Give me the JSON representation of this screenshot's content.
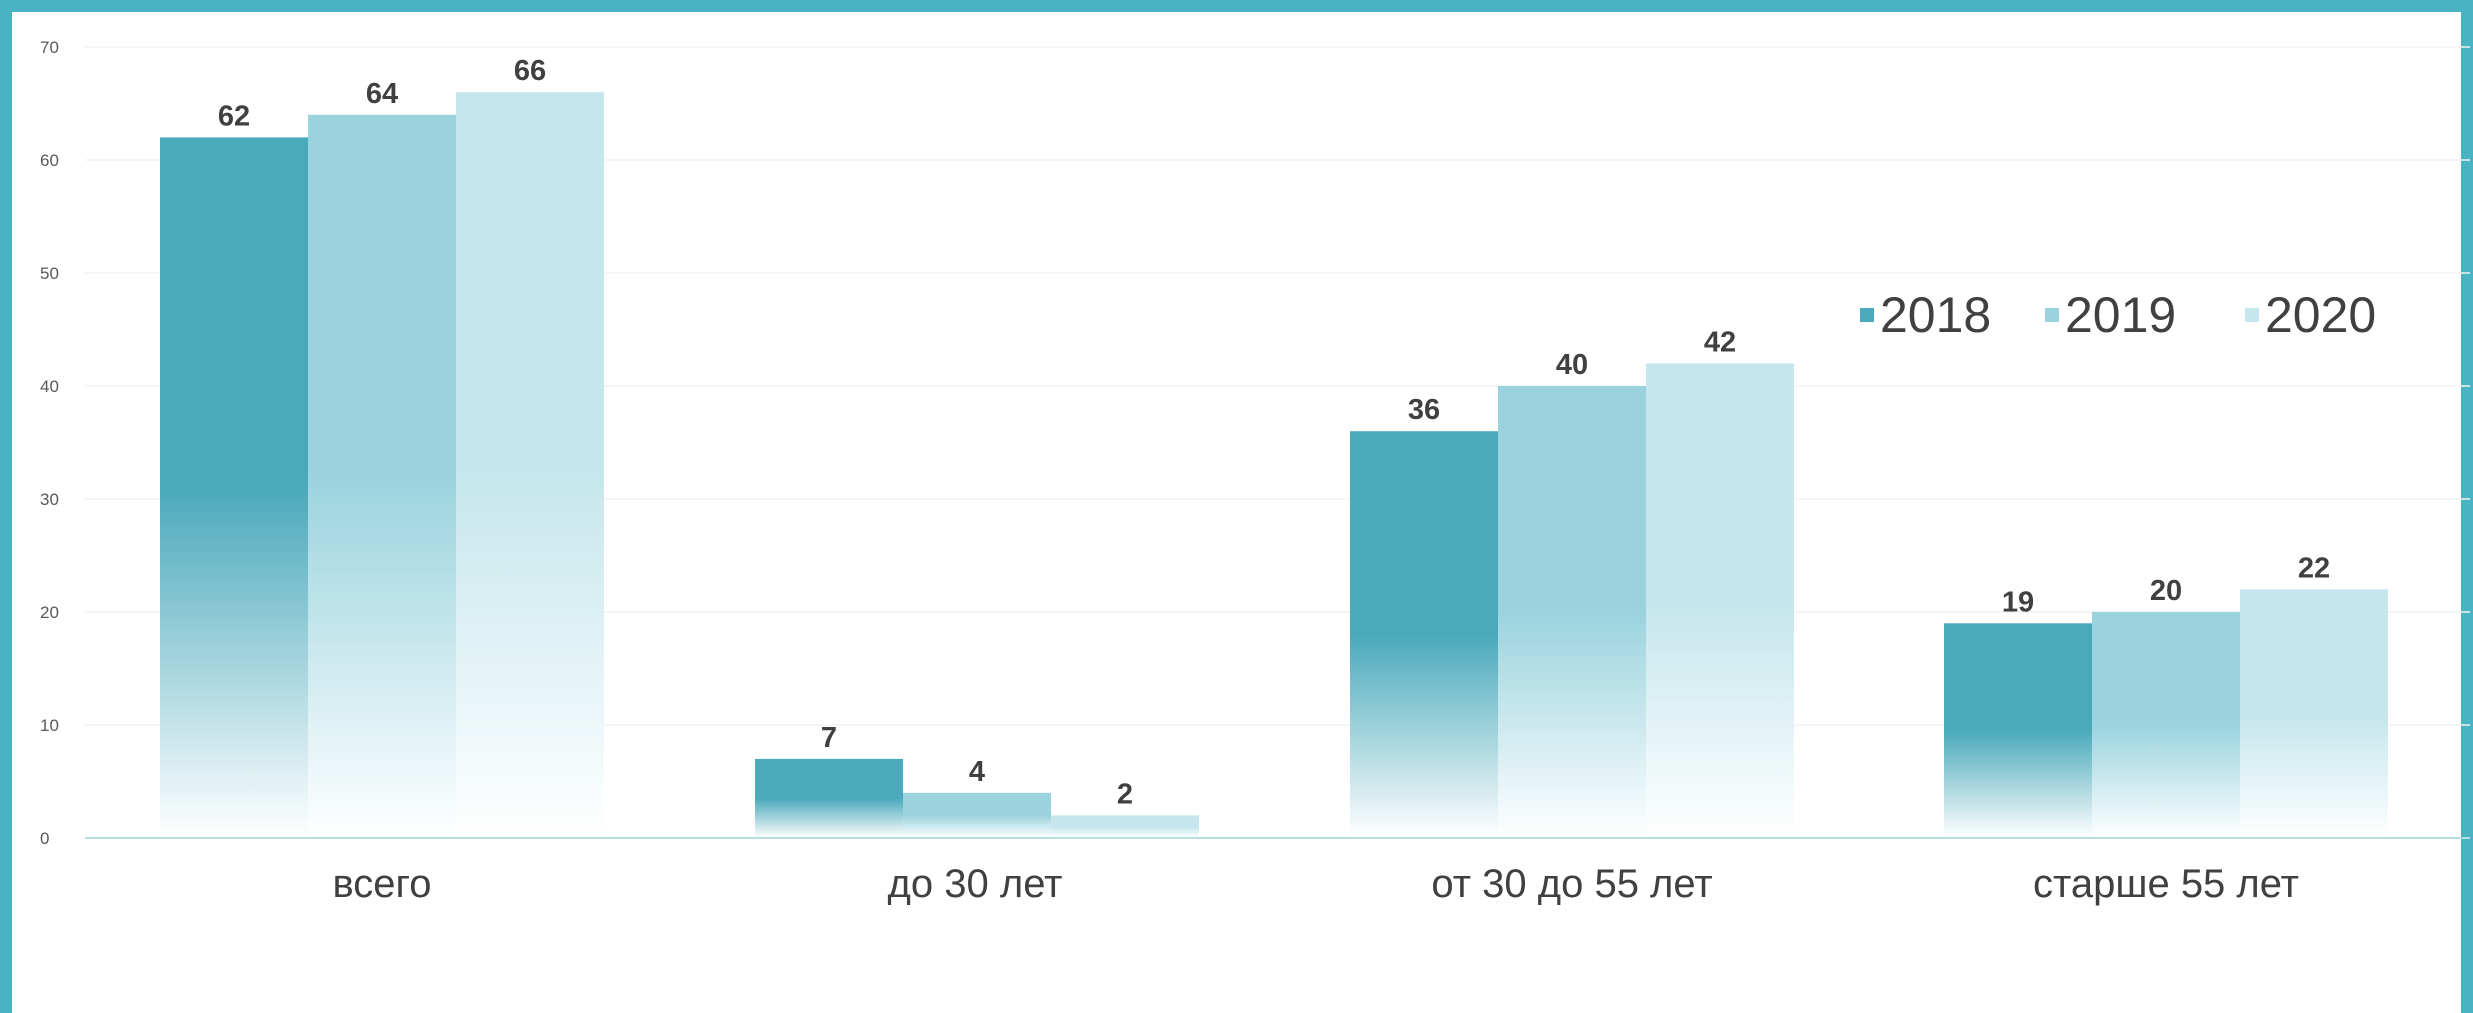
{
  "chart_data": {
    "type": "bar",
    "categories": [
      "всего",
      "до 30 лет",
      "от 30 до 55 лет",
      "старше 55 лет"
    ],
    "series": [
      {
        "name": "2018",
        "values": [
          62,
          7,
          36,
          19
        ],
        "color": "#4aa9bb"
      },
      {
        "name": "2019",
        "values": [
          64,
          4,
          40,
          20
        ],
        "color": "#9ad3de"
      },
      {
        "name": "2020",
        "values": [
          66,
          2,
          42,
          22
        ],
        "color": "#c4e6ec"
      }
    ],
    "ylim": [
      0,
      70
    ],
    "yticks": [
      0,
      10,
      20,
      30,
      40,
      50,
      60,
      70
    ],
    "title": "",
    "xlabel": "",
    "ylabel": "",
    "grid": true,
    "legend_position": "right",
    "frame_color": "#4ab3c3"
  }
}
